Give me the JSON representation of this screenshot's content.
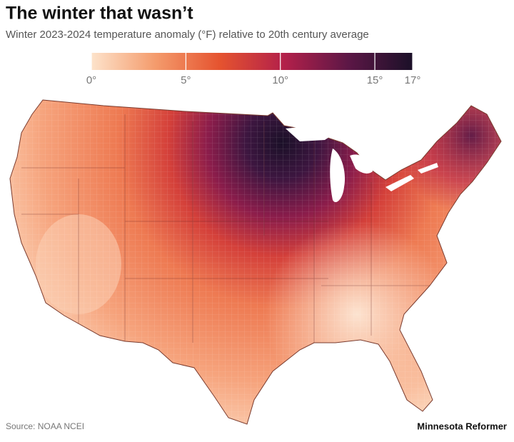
{
  "header": {
    "title": "The winter that wasn’t",
    "subtitle": "Winter 2023-2024 temperature anomaly (°F) relative to 20th century average"
  },
  "legend": {
    "min": 0,
    "max": 17,
    "ticks": [
      {
        "value": 0,
        "label": "0°"
      },
      {
        "value": 5,
        "label": "5°"
      },
      {
        "value": 10,
        "label": "10°"
      },
      {
        "value": 15,
        "label": "15°"
      },
      {
        "value": 17,
        "label": "17°"
      }
    ],
    "colors": [
      "#fde3cb",
      "#f49b6c",
      "#e5532f",
      "#b3204a",
      "#5c1746",
      "#1b1028"
    ]
  },
  "footer": {
    "source": "Source: NOAA NCEI",
    "credit": "Minnesota Reformer"
  }
}
